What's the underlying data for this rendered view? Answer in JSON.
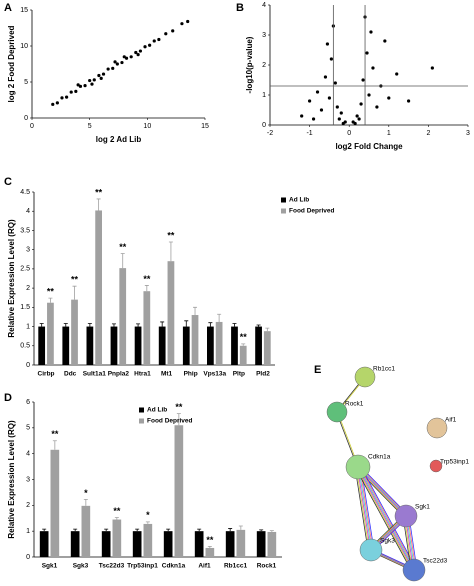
{
  "chart_data": [
    {
      "type": "scatter",
      "panel": "A",
      "xlabel": "log 2 Ad Lib",
      "ylabel": "log 2 Food Deprived",
      "x": [
        1.8,
        2.2,
        2.6,
        3.0,
        3.4,
        3.8,
        4.2,
        4.6,
        5.0,
        5.4,
        5.8,
        6.2,
        6.6,
        7.0,
        7.4,
        7.8,
        8.2,
        8.6,
        9.0,
        9.4,
        9.8,
        10.2,
        10.6,
        11.0,
        11.6,
        12.2,
        13.0,
        13.5,
        4.0,
        6.0,
        8.0,
        5.2,
        7.2,
        9.2
      ],
      "y": [
        1.9,
        2.1,
        2.8,
        2.9,
        3.6,
        3.7,
        4.4,
        4.5,
        5.2,
        5.3,
        5.9,
        6.1,
        6.8,
        6.9,
        7.5,
        7.7,
        8.3,
        8.5,
        9.1,
        9.3,
        9.9,
        10.1,
        10.7,
        10.9,
        11.7,
        12.1,
        13.1,
        13.4,
        4.6,
        5.5,
        8.5,
        4.7,
        7.8,
        8.8
      ],
      "color": "#000000",
      "xlim": [
        0,
        15
      ],
      "ylim": [
        0,
        15
      ],
      "xticks": [
        0,
        5,
        10,
        15
      ],
      "yticks": [
        0,
        5,
        10,
        15
      ]
    },
    {
      "type": "scatter",
      "panel": "B",
      "xlabel": "log2 Fold Change",
      "ylabel": "-log10(p-value)",
      "x": [
        -1.2,
        -1.0,
        -0.9,
        -0.8,
        -0.7,
        -0.6,
        -0.5,
        -0.45,
        -0.35,
        -0.3,
        -0.2,
        -0.1,
        0.1,
        0.2,
        0.3,
        0.35,
        0.45,
        0.5,
        0.6,
        0.7,
        0.8,
        0.9,
        1.0,
        1.2,
        1.5,
        2.1,
        0.4,
        -0.4,
        0.55,
        -0.55,
        0.25,
        -0.25,
        0.15,
        -0.15
      ],
      "y": [
        0.3,
        0.8,
        0.2,
        1.1,
        0.5,
        1.6,
        0.9,
        2.2,
        1.4,
        0.6,
        0.4,
        0.1,
        0.1,
        0.3,
        0.7,
        1.5,
        2.4,
        1.0,
        1.9,
        0.6,
        1.3,
        2.8,
        0.9,
        1.7,
        0.8,
        1.9,
        3.6,
        3.3,
        3.1,
        2.7,
        0.2,
        0.2,
        0.05,
        0.05
      ],
      "color": "#000000",
      "xlim": [
        -2,
        3
      ],
      "ylim": [
        0,
        4
      ],
      "xticks": [
        -2,
        -1,
        0,
        1,
        2,
        3
      ],
      "yticks": [
        0,
        1,
        2,
        3,
        4
      ],
      "hline": 1.3,
      "vlines": [
        -0.4,
        0.4
      ]
    },
    {
      "type": "bar",
      "panel": "C",
      "ylabel": "Relative Expression Level (RQ)",
      "categories": [
        "Cirbp",
        "Ddc",
        "Sult1a1",
        "Pnpla2",
        "Htra1",
        "Mt1",
        "Phip",
        "Vps13a",
        "Pltp",
        "Pld2"
      ],
      "series": [
        {
          "name": "Ad Lib",
          "color": "#000000",
          "values": [
            1,
            1,
            1,
            1,
            1,
            1,
            1,
            1,
            1,
            1
          ],
          "errors": [
            0.08,
            0.08,
            0.08,
            0.07,
            0.07,
            0.12,
            0.15,
            0.1,
            0.08,
            0.04
          ]
        },
        {
          "name": "Food Deprived",
          "color": "#a0a0a0",
          "values": [
            1.62,
            1.7,
            4.02,
            2.52,
            1.92,
            2.7,
            1.3,
            1.12,
            0.5,
            0.88
          ],
          "errors": [
            0.12,
            0.35,
            0.3,
            0.38,
            0.15,
            0.5,
            0.2,
            0.2,
            0.05,
            0.08
          ]
        }
      ],
      "significance": [
        "**",
        "**",
        "**",
        "**",
        "**",
        "**",
        null,
        null,
        "**",
        null
      ],
      "ylim": [
        0,
        4.5
      ],
      "yticks": [
        0,
        0.5,
        1,
        1.5,
        2,
        2.5,
        3,
        3.5,
        4,
        4.5
      ],
      "legend": "right"
    },
    {
      "type": "bar",
      "panel": "D",
      "ylabel": "Relative Expression Level (RQ)",
      "categories": [
        "Sgk1",
        "Sgk3",
        "Tsc22d3",
        "Trp53inp1",
        "Cdkn1a",
        "Aif1",
        "Rb1cc1",
        "Rock1"
      ],
      "series": [
        {
          "name": "Ad Lib",
          "color": "#000000",
          "values": [
            1,
            1,
            1,
            1,
            1,
            1,
            1,
            1
          ],
          "errors": [
            0.08,
            0.08,
            0.08,
            0.08,
            0.08,
            0.08,
            0.1,
            0.05
          ]
        },
        {
          "name": "Food Deprived",
          "color": "#a0a0a0",
          "values": [
            4.15,
            1.98,
            1.45,
            1.28,
            5.1,
            0.35,
            1.05,
            0.97
          ],
          "errors": [
            0.35,
            0.25,
            0.08,
            0.08,
            0.45,
            0.06,
            0.15,
            0.05
          ]
        }
      ],
      "significance": [
        "**",
        "*",
        "**",
        "*",
        "**",
        "**",
        null,
        null
      ],
      "ylim": [
        0,
        6
      ],
      "yticks": [
        0,
        1,
        2,
        3,
        4,
        5,
        6
      ],
      "legend": "upper center"
    }
  ],
  "diagram": {
    "panel": "E",
    "nodes": [
      "Rb1cc1",
      "Rock1",
      "Aif1",
      "Cdkn1a",
      "Trp53inp1",
      "Sgk1",
      "Sgk3",
      "Tsc22d3"
    ]
  }
}
